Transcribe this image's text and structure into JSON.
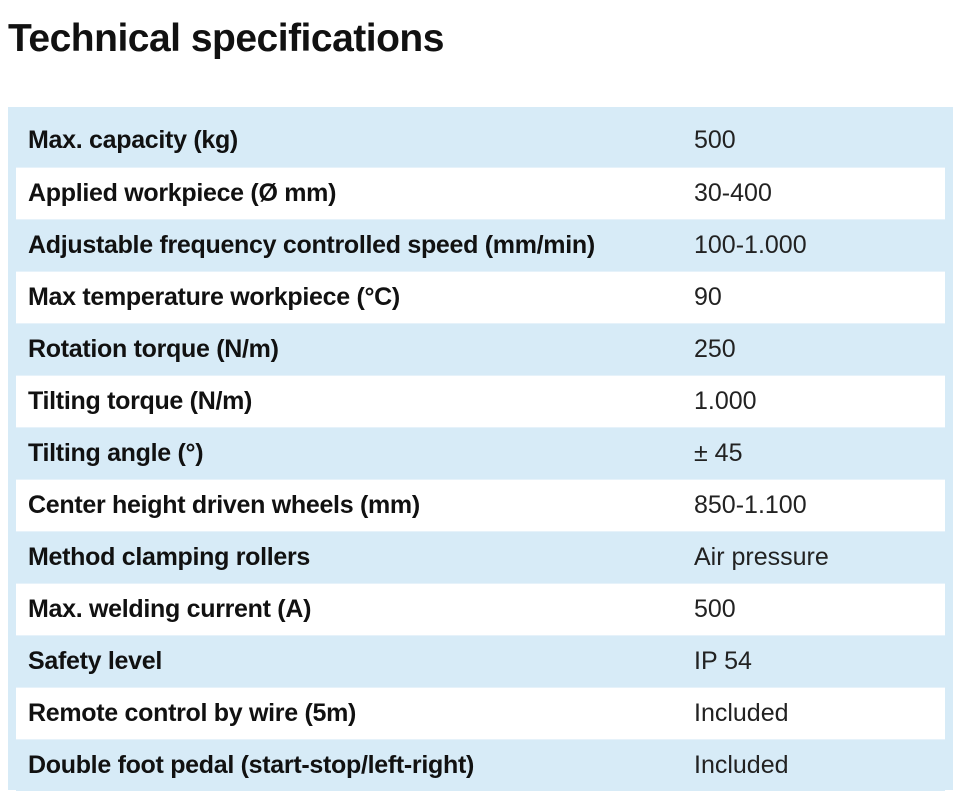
{
  "title": "Technical specifications",
  "specs": [
    {
      "label": "Max. capacity (kg)",
      "value": "500"
    },
    {
      "label": "Applied workpiece (Ø mm)",
      "value": "30-400"
    },
    {
      "label": "Adjustable frequency controlled speed (mm/min)",
      "value": "100-1.000"
    },
    {
      "label": "Max temperature workpiece (°C)",
      "value": "90"
    },
    {
      "label": "Rotation torque (N/m)",
      "value": "250"
    },
    {
      "label": "Tilting torque (N/m)",
      "value": "1.000"
    },
    {
      "label": "Tilting angle (°)",
      "value": "± 45"
    },
    {
      "label": "Center height driven wheels  (mm)",
      "value": "850-1.100"
    },
    {
      "label": "Method clamping rollers",
      "value": "Air pressure"
    },
    {
      "label": "Max. welding current (A)",
      "value": "500"
    },
    {
      "label": "Safety level",
      "value": "IP 54"
    },
    {
      "label": "Remote control by wire (5m)",
      "value": "Included"
    },
    {
      "label": "Double foot pedal (start-stop/left-right)",
      "value": "Included"
    }
  ],
  "colors": {
    "band": "#d7ebf7",
    "alt_row": "#ffffff",
    "text": "#111111"
  }
}
